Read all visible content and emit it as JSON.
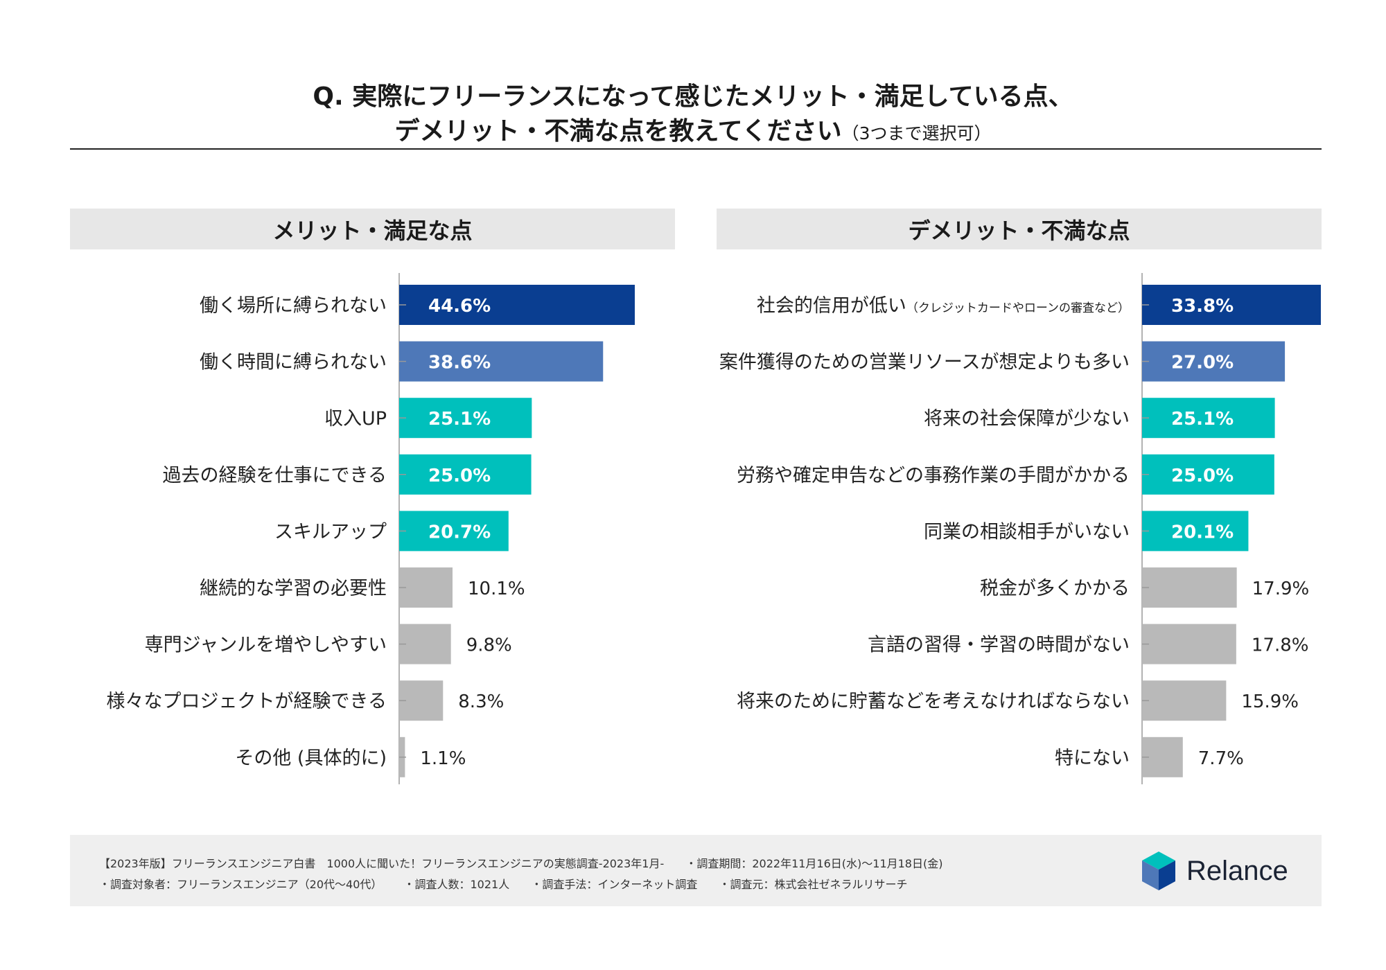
{
  "header": {
    "title_line1": "Q. 実際にフリーランスになって感じたメリット・満足している点、",
    "title_line2": "デメリット・不満な点を教えてください",
    "title_note": "（3つまで選択可）"
  },
  "chart_data": [
    {
      "type": "bar",
      "orientation": "horizontal",
      "title": "メリット・満足な点",
      "unit": "%",
      "categories": [
        "働く場所に縛られない",
        "働く時間に縛られない",
        "収入UP",
        "過去の経験を仕事にできる",
        "スキルアップ",
        "継続的な学習の必要性",
        "専門ジャンルを増やしやすい",
        "様々なプロジェクトが経験できる",
        "その他 (具体的に)"
      ],
      "values": [
        44.6,
        38.6,
        25.1,
        25.0,
        20.7,
        10.1,
        9.8,
        8.3,
        1.1
      ],
      "labels": [
        "44.6%",
        "38.6%",
        "25.1%",
        "25.0%",
        "20.7%",
        "10.1%",
        "9.8%",
        "8.3%",
        "1.1%"
      ],
      "colors": [
        "#0a3e91",
        "#4e78b8",
        "#00c0bc",
        "#00c0bc",
        "#00c0bc",
        "#b9b9b9",
        "#b9b9b9",
        "#b9b9b9",
        "#b9b9b9"
      ]
    },
    {
      "type": "bar",
      "orientation": "horizontal",
      "title": "デメリット・不満な点",
      "unit": "%",
      "categories": [
        "社会的信用が低い",
        "案件獲得のための営業リソースが想定よりも多い",
        "将来の社会保障が少ない",
        "労務や確定申告などの事務作業の手間がかかる",
        "同業の相談相手がいない",
        "税金が多くかかる",
        "言語の習得・学習の時間がない",
        "将来のために貯蓄などを考えなければならない",
        "特にない"
      ],
      "category_notes": [
        "（クレジットカードやローンの審査など）",
        "",
        "",
        "",
        "",
        "",
        "",
        "",
        ""
      ],
      "values": [
        33.8,
        27.0,
        25.1,
        25.0,
        20.1,
        17.9,
        17.8,
        15.9,
        7.7
      ],
      "labels": [
        "33.8%",
        "27.0%",
        "25.1%",
        "25.0%",
        "20.1%",
        "17.9%",
        "17.8%",
        "15.9%",
        "7.7%"
      ],
      "colors": [
        "#0a3e91",
        "#4e78b8",
        "#00c0bc",
        "#00c0bc",
        "#00c0bc",
        "#b9b9b9",
        "#b9b9b9",
        "#b9b9b9",
        "#b9b9b9"
      ]
    }
  ],
  "footer": {
    "source": "【2023年版】フリーランスエンジニア白書　1000人に聞いた！フリーランスエンジニアの実態調査-2023年1月-",
    "period": "・調査期間：2022年11月16日(水)〜11月18日(金)",
    "target": "・調査対象者：フリーランスエンジニア（20代〜40代）",
    "count": "・調査人数：1021人",
    "method": "・調査手法：インターネット調査",
    "org": "・調査元：株式会社ゼネラルリサーチ"
  },
  "brand": {
    "name": "Relance",
    "icon": "relance-cube-icon",
    "colors": [
      "#00c0bc",
      "#0a3e91",
      "#4e78b8"
    ]
  }
}
